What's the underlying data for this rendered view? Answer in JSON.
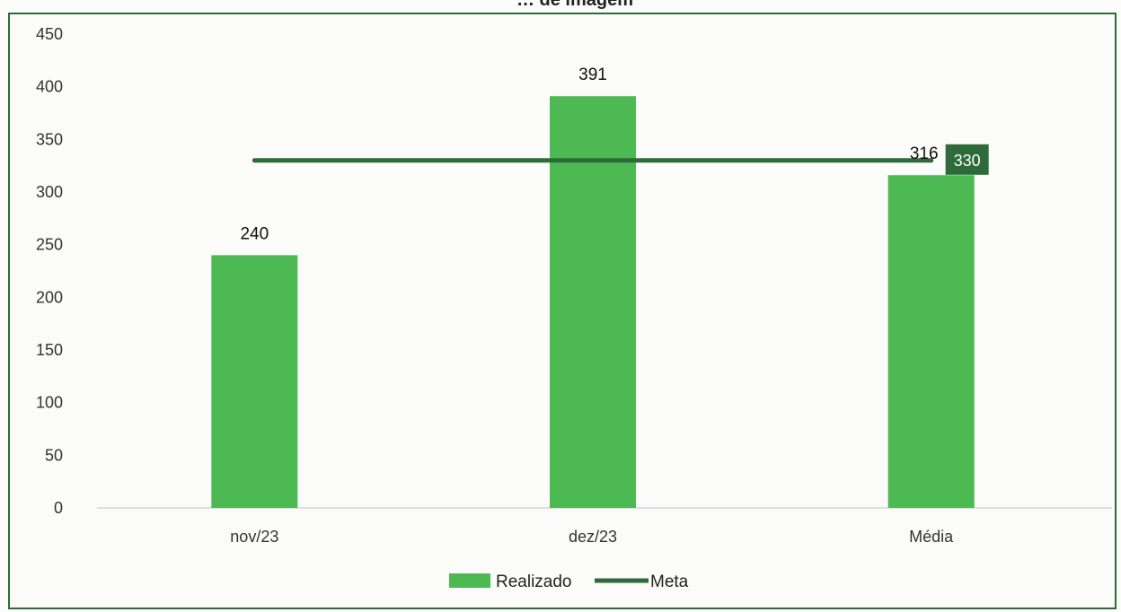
{
  "chart_data": {
    "type": "bar",
    "title": "… de imagem",
    "categories": [
      "nov/23",
      "dez/23",
      "Média"
    ],
    "series": [
      {
        "name": "Realizado",
        "kind": "bar",
        "values": [
          240,
          391,
          316
        ],
        "color": "#4cb952"
      },
      {
        "name": "Meta",
        "kind": "line",
        "values": [
          330,
          330,
          330
        ],
        "color": "#2f6b3a"
      }
    ],
    "yticks": [
      0,
      50,
      100,
      150,
      200,
      250,
      300,
      350,
      400,
      450
    ],
    "ylim": [
      0,
      450
    ],
    "legend": "bottom-center",
    "grid": false
  }
}
